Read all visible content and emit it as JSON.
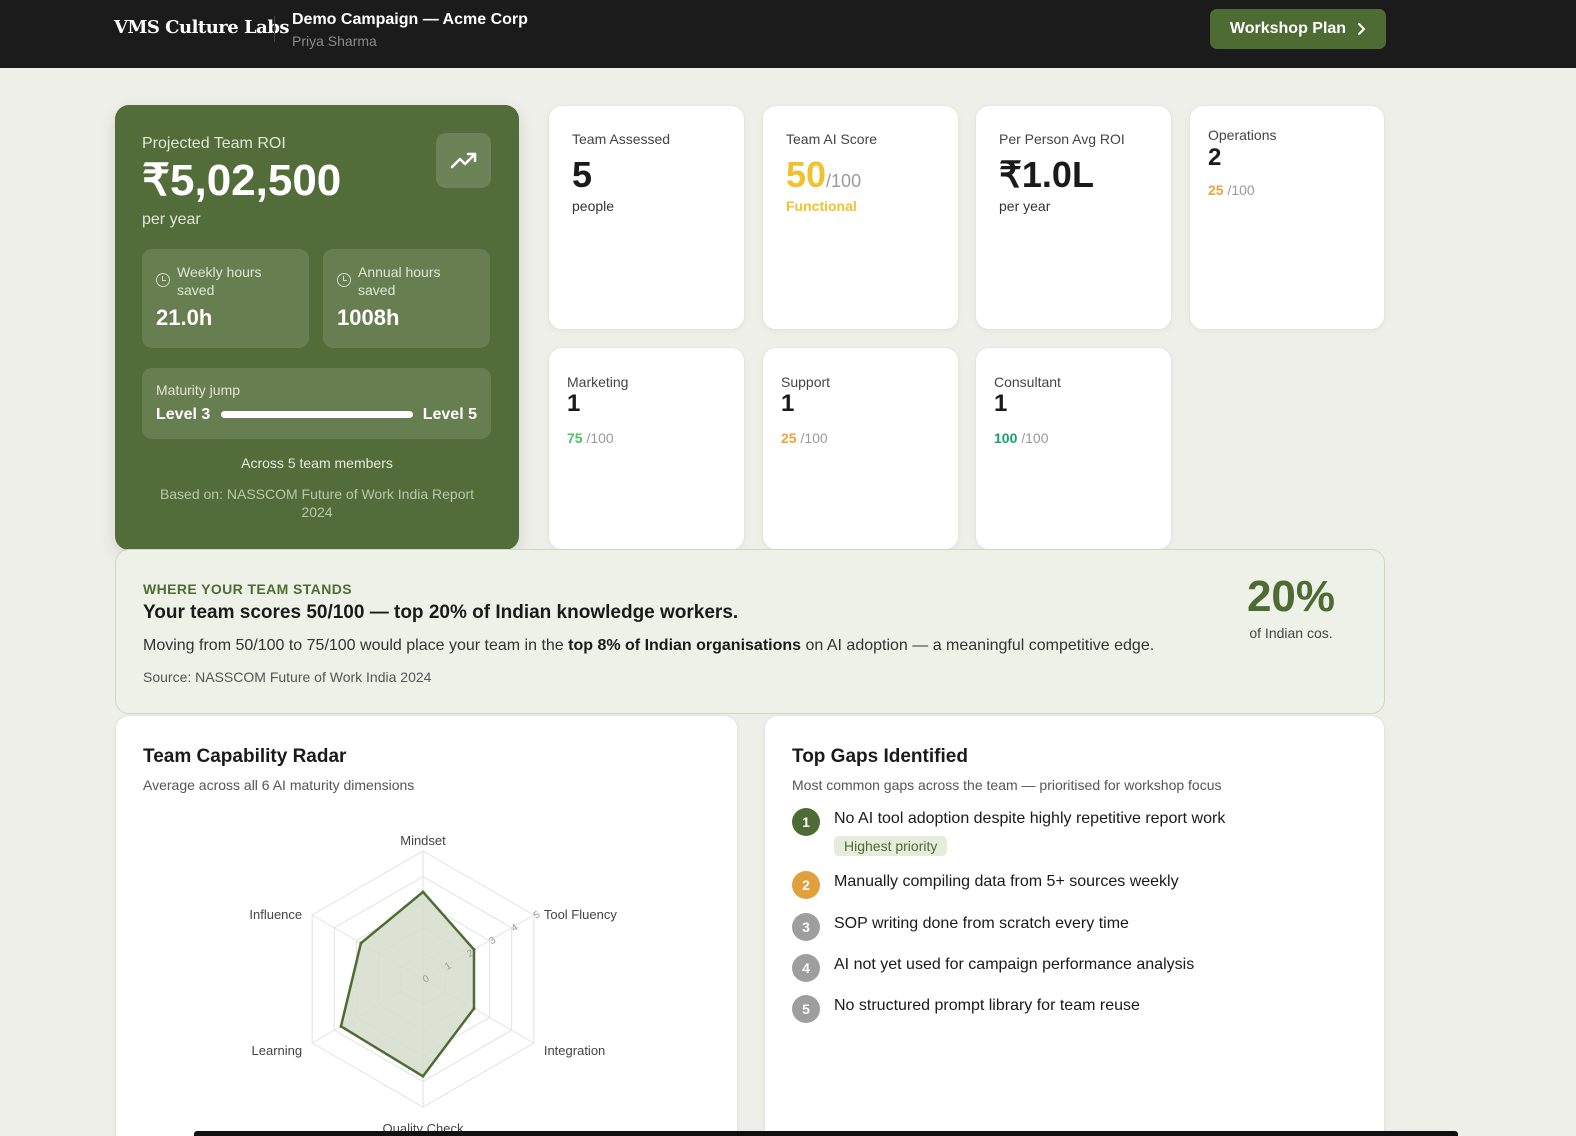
{
  "header": {
    "brand": "VMS Culture Labs",
    "campaign_title": "Demo Campaign — Acme Corp",
    "user": "Priya Sharma",
    "workshop_button": "Workshop Plan"
  },
  "roi": {
    "label": "Projected Team ROI",
    "value": "₹5,02,500",
    "unit": "per year",
    "weekly_label": "Weekly hours saved",
    "weekly_value": "21.0h",
    "annual_label": "Annual hours saved",
    "annual_value": "1008h",
    "maturity_label": "Maturity jump",
    "maturity_from": "Level 3",
    "maturity_to": "Level 5",
    "members": "Across 5 team members",
    "source": "Based on: NASSCOM Future of Work India Report 2024"
  },
  "stats": [
    {
      "label": "Team Assessed",
      "value": "5",
      "sub": "people"
    },
    {
      "label": "Team AI Score",
      "value": "50",
      "den": "/100",
      "sub": "Functional",
      "color": "#f2c12e"
    },
    {
      "label": "Per Person Avg ROI",
      "value": "₹1.0L",
      "sub": "per year"
    }
  ],
  "departments": [
    {
      "name": "Operations",
      "count": "2",
      "score": "25",
      "den": "/100",
      "color": "#f0a23a"
    },
    {
      "name": "Marketing",
      "count": "1",
      "score": "75",
      "den": "/100",
      "color": "#4cc267"
    },
    {
      "name": "Support",
      "count": "1",
      "score": "25",
      "den": "/100",
      "color": "#f0a23a"
    },
    {
      "name": "Consultant",
      "count": "1",
      "score": "100",
      "den": "/100",
      "color": "#14a36a"
    }
  ],
  "stands": {
    "kicker": "WHERE YOUR TEAM STANDS",
    "headline": "Your team scores 50/100 — top 20% of Indian knowledge workers.",
    "body_pre": "Moving from 50/100 to 75/100 would place your team in the ",
    "body_bold": "top 8% of Indian organisations",
    "body_post": " on AI adoption — a meaningful competitive edge.",
    "source": "Source: NASSCOM Future of Work India 2024",
    "big": "20%",
    "big_sub": "of Indian cos."
  },
  "radar": {
    "title": "Team Capability Radar",
    "subtitle": "Average across all 6 AI maturity dimensions"
  },
  "chart_data": {
    "type": "radar",
    "categories": [
      "Mindset",
      "Tool Fluency",
      "Integration",
      "Quality Check",
      "Learning",
      "Influence"
    ],
    "values": [
      3.4,
      2.3,
      2.3,
      3.8,
      3.7,
      2.8
    ],
    "rlim": [
      0,
      5
    ],
    "ticks": [
      "0",
      "1",
      "2",
      "3",
      "4",
      "5"
    ],
    "colors": {
      "line": "#4f6b34",
      "fill": "#d6ddcb",
      "grid": "#e2e2e2"
    }
  },
  "gaps": {
    "title": "Top Gaps Identified",
    "subtitle": "Most common gaps across the team — prioritised for workshop focus",
    "priority_badge": "Highest priority",
    "items": [
      {
        "n": "1",
        "text": "No AI tool adoption despite highly repetitive report work",
        "color": "#4f6b34"
      },
      {
        "n": "2",
        "text": "Manually compiling data from 5+ sources weekly",
        "color": "#e0a03c"
      },
      {
        "n": "3",
        "text": "SOP writing done from scratch every time",
        "color": "#9e9e9e"
      },
      {
        "n": "4",
        "text": "AI not yet used for campaign performance analysis",
        "color": "#9e9e9e"
      },
      {
        "n": "5",
        "text": "No structured prompt library for team reuse",
        "color": "#9e9e9e"
      }
    ]
  }
}
